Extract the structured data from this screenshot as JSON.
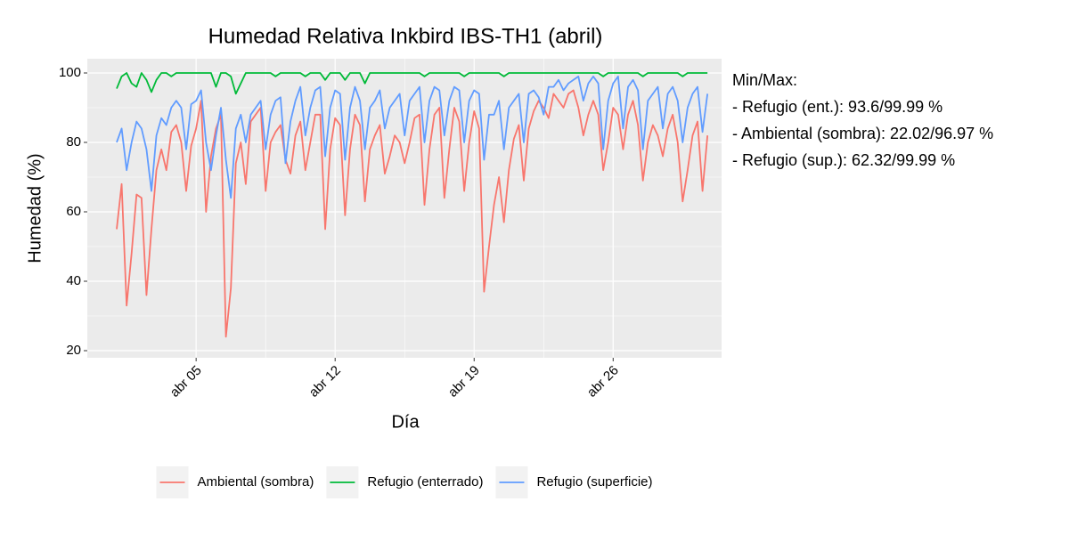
{
  "chart_data": {
    "type": "line",
    "title": "Humedad Relativa Inkbird IBS-TH1 (abril)",
    "xlabel": "Día",
    "ylabel": "Humedad (%)",
    "annotation": {
      "title": "Min/Max:",
      "lines": [
        "- Refugio (ent.): 93.6/99.99 %",
        "- Ambiental (sombra): 22.02/96.97 %",
        "- Refugio (sup.): 62.32/99.99 %"
      ]
    },
    "x": [
      1,
      1.25,
      1.5,
      1.75,
      2,
      2.25,
      2.5,
      2.75,
      3,
      3.25,
      3.5,
      3.75,
      4,
      4.25,
      4.5,
      4.75,
      5,
      5.25,
      5.5,
      5.75,
      6,
      6.25,
      6.5,
      6.75,
      7,
      7.25,
      7.5,
      7.75,
      8,
      8.25,
      8.5,
      8.75,
      9,
      9.25,
      9.5,
      9.75,
      10,
      10.25,
      10.5,
      10.75,
      11,
      11.25,
      11.5,
      11.75,
      12,
      12.25,
      12.5,
      12.75,
      13,
      13.25,
      13.5,
      13.75,
      14,
      14.25,
      14.5,
      14.75,
      15,
      15.25,
      15.5,
      15.75,
      16,
      16.25,
      16.5,
      16.75,
      17,
      17.25,
      17.5,
      17.75,
      18,
      18.25,
      18.5,
      18.75,
      19,
      19.25,
      19.5,
      19.75,
      20,
      20.25,
      20.5,
      20.75,
      21,
      21.25,
      21.5,
      21.75,
      22,
      22.25,
      22.5,
      22.75,
      23,
      23.25,
      23.5,
      23.75,
      24,
      24.25,
      24.5,
      24.75,
      25,
      25.25,
      25.5,
      25.75,
      26,
      26.25,
      26.5,
      26.75,
      27,
      27.25,
      27.5,
      27.75,
      28,
      28.25,
      28.5,
      28.75,
      29,
      29.25,
      29.5,
      29.75,
      30,
      30.25,
      30.5,
      30.75
    ],
    "series": [
      {
        "name": "Ambiental (sombra)",
        "color": "#f8766d",
        "values": [
          55,
          68,
          33,
          48,
          65,
          64,
          36,
          55,
          72,
          78,
          72,
          83,
          85,
          80,
          66,
          79,
          84,
          92,
          60,
          76,
          84,
          88,
          24,
          38,
          74,
          80,
          68,
          86,
          88,
          90,
          66,
          80,
          83,
          85,
          75,
          71,
          82,
          86,
          72,
          80,
          88,
          88,
          55,
          78,
          87,
          85,
          59,
          78,
          88,
          85,
          63,
          78,
          82,
          85,
          71,
          76,
          82,
          80,
          74,
          80,
          87,
          88,
          62,
          78,
          88,
          90,
          64,
          78,
          90,
          86,
          66,
          80,
          89,
          84,
          37,
          50,
          62,
          70,
          57,
          72,
          81,
          85,
          69,
          84,
          89,
          92,
          90,
          87,
          94,
          92,
          90,
          94,
          95,
          90,
          82,
          88,
          92,
          88,
          72,
          80,
          90,
          88,
          78,
          88,
          92,
          85,
          69,
          80,
          85,
          82,
          76,
          84,
          88,
          80,
          63,
          72,
          82,
          86,
          66,
          82
        ]
      },
      {
        "name": "Refugio (enterrado)",
        "color": "#00ba38",
        "values": [
          95.5,
          99,
          100,
          97,
          96,
          100,
          98,
          94.5,
          98,
          100,
          100,
          99,
          100,
          100,
          100,
          100,
          100,
          100,
          100,
          100,
          96,
          100,
          100,
          99,
          94,
          97,
          100,
          100,
          100,
          100,
          100,
          100,
          99,
          100,
          100,
          100,
          100,
          100,
          99,
          100,
          100,
          100,
          98,
          100,
          100,
          100,
          98,
          100,
          100,
          100,
          97,
          100,
          100,
          100,
          100,
          100,
          100,
          100,
          100,
          100,
          100,
          100,
          99,
          100,
          100,
          100,
          100,
          100,
          100,
          100,
          99,
          100,
          100,
          100,
          100,
          100,
          100,
          100,
          99,
          100,
          100,
          100,
          100,
          100,
          100,
          100,
          100,
          100,
          100,
          100,
          100,
          100,
          100,
          100,
          100,
          100,
          100,
          100,
          99,
          100,
          100,
          100,
          100,
          100,
          100,
          100,
          99,
          100,
          100,
          100,
          100,
          100,
          100,
          100,
          99,
          100,
          100,
          100,
          100,
          100
        ]
      },
      {
        "name": "Refugio (superficie)",
        "color": "#619cff",
        "values": [
          80,
          84,
          72,
          80,
          86,
          84,
          78,
          66,
          82,
          87,
          85,
          90,
          92,
          90,
          78,
          91,
          92,
          95,
          80,
          72,
          82,
          90,
          75,
          64,
          84,
          88,
          80,
          88,
          90,
          92,
          78,
          88,
          92,
          93,
          74,
          86,
          92,
          96,
          82,
          90,
          95,
          96,
          76,
          90,
          95,
          94,
          75,
          90,
          96,
          92,
          78,
          90,
          92,
          95,
          84,
          90,
          92,
          94,
          82,
          92,
          94,
          96,
          80,
          92,
          96,
          95,
          82,
          92,
          96,
          95,
          80,
          92,
          95,
          94,
          75,
          88,
          88,
          92,
          78,
          90,
          92,
          94,
          80,
          94,
          95,
          93,
          88,
          96,
          96,
          98,
          95,
          97,
          98,
          99,
          92,
          97,
          99,
          97,
          78,
          92,
          97,
          99,
          84,
          96,
          98,
          95,
          78,
          92,
          94,
          96,
          84,
          94,
          96,
          92,
          80,
          90,
          94,
          96,
          83,
          94
        ]
      }
    ],
    "xlim": [
      -0.48,
      31.46
    ],
    "xticks": [
      {
        "value": 5,
        "label": "abr 05"
      },
      {
        "value": 12,
        "label": "abr 12"
      },
      {
        "value": 19,
        "label": "abr 19"
      },
      {
        "value": 26,
        "label": "abr 26"
      }
    ],
    "ylim": [
      17.95,
      104.1
    ],
    "yticks": [
      20,
      40,
      60,
      80,
      100
    ],
    "grid": true,
    "legend": "bottom"
  }
}
